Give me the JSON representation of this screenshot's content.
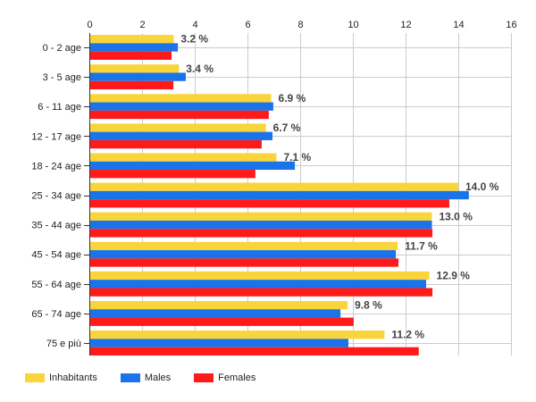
{
  "chart_data": {
    "type": "bar",
    "orientation": "horizontal",
    "title": "",
    "xlabel": "",
    "ylabel": "",
    "xlim": [
      0,
      16
    ],
    "x_ticks": [
      "0",
      "2",
      "4",
      "6",
      "8",
      "10",
      "12",
      "14",
      "16"
    ],
    "grid": true,
    "legend_position": "bottom-left",
    "categories": [
      "0 - 2 age",
      "3 - 5 age",
      "6 - 11 age",
      "12 - 17 age",
      "18 - 24 age",
      "25 - 34 age",
      "35 - 44 age",
      "45 - 54 age",
      "55 - 64 age",
      "65 - 74 age",
      "75 e più"
    ],
    "series": [
      {
        "name": "Inhabitants",
        "color": "#f9d43a",
        "values": [
          3.2,
          3.4,
          6.9,
          6.7,
          7.1,
          14.0,
          13.0,
          11.7,
          12.9,
          9.8,
          11.2
        ]
      },
      {
        "name": "Males",
        "color": "#1a73e8",
        "values": [
          3.36,
          3.66,
          6.98,
          6.95,
          7.8,
          14.4,
          13.0,
          11.63,
          12.78,
          9.53,
          9.83
        ]
      },
      {
        "name": "Females",
        "color": "#ff1a1a",
        "values": [
          3.12,
          3.19,
          6.81,
          6.54,
          6.3,
          13.66,
          13.02,
          11.73,
          13.02,
          10.03,
          12.5
        ]
      }
    ],
    "data_labels": [
      "3.2 %",
      "3.4 %",
      "6.9 %",
      "6.7 %",
      "7.1 %",
      "14.0 %",
      "13.0 %",
      "11.7 %",
      "12.9 %",
      "9.8 %",
      "11.2 %"
    ]
  }
}
